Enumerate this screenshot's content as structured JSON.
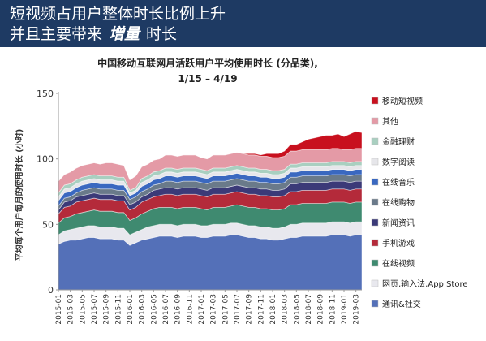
{
  "header": {
    "line1": "短视频占用户整体时长比例上升",
    "line2_a": "并且主要带来",
    "line2_b": "增量",
    "line2_c": "时长"
  },
  "colors": {
    "header_bg": "#1e3a63",
    "header_text": "#ffffff"
  },
  "chart_data": {
    "type": "area",
    "stacked": true,
    "title": "中国移动互联网月活跃用户平均使用时长 (分品类),",
    "subtitle": "1/15 – 4/19",
    "ylabel": "平均每个用户每月的使用时长 (小时)",
    "xlabel": "",
    "ylim": [
      0,
      150
    ],
    "yticks": [
      0,
      50,
      100,
      150
    ],
    "grid": false,
    "legend_position": "right",
    "x": [
      "2015-01",
      "2015-02",
      "2015-03",
      "2015-04",
      "2015-05",
      "2015-06",
      "2015-07",
      "2015-08",
      "2015-09",
      "2015-10",
      "2015-11",
      "2015-12",
      "2016-01",
      "2016-02",
      "2016-03",
      "2016-04",
      "2016-05",
      "2016-06",
      "2016-07",
      "2016-08",
      "2016-09",
      "2016-10",
      "2016-11",
      "2016-12",
      "2017-01",
      "2017-02",
      "2017-03",
      "2017-04",
      "2017-05",
      "2017-06",
      "2017-07",
      "2017-08",
      "2017-09",
      "2017-10",
      "2017-11",
      "2017-12",
      "2018-01",
      "2018-02",
      "2018-03",
      "2018-04",
      "2018-05",
      "2018-06",
      "2018-07",
      "2018-08",
      "2018-09",
      "2018-10",
      "2018-11",
      "2018-12",
      "2019-01",
      "2019-02",
      "2019-03",
      "2019-04"
    ],
    "x_tick_labels": [
      "2015-01",
      "2015-03",
      "2015-05",
      "2015-07",
      "2015-09",
      "2015-11",
      "2016-01",
      "2016-03",
      "2016-05",
      "2016-07",
      "2016-09",
      "2016-11",
      "2017-01",
      "2017-03",
      "2017-05",
      "2017-07",
      "2017-09",
      "2017-11",
      "2018-01",
      "2018-03",
      "2018-05",
      "2018-07",
      "2018-09",
      "2018-11",
      "2019-01",
      "2019-03"
    ],
    "series": [
      {
        "name": "通讯&社交",
        "color": "#5470b8",
        "values": [
          35,
          37,
          38,
          38,
          39,
          40,
          40,
          39,
          39,
          39,
          38,
          38,
          34,
          36,
          38,
          39,
          40,
          41,
          41,
          41,
          40,
          41,
          41,
          41,
          40,
          40,
          41,
          41,
          41,
          42,
          42,
          41,
          40,
          40,
          39,
          39,
          38,
          38,
          39,
          40,
          40,
          41,
          41,
          41,
          41,
          41,
          42,
          42,
          42,
          41,
          42,
          42
        ]
      },
      {
        "name": "网页,输入法,App Store",
        "color": "#e8e8ee",
        "values": [
          7,
          8,
          8,
          9,
          9,
          9,
          9,
          9,
          9,
          9,
          9,
          9,
          8,
          8,
          8,
          9,
          9,
          9,
          9,
          9,
          9,
          9,
          9,
          9,
          9,
          9,
          9,
          9,
          9,
          9,
          9,
          9,
          9,
          9,
          9,
          9,
          9,
          9,
          9,
          10,
          10,
          10,
          10,
          10,
          10,
          10,
          10,
          10,
          10,
          10,
          10,
          10
        ]
      },
      {
        "name": "在线视频",
        "color": "#3f8a70",
        "values": [
          9,
          10,
          10,
          11,
          11,
          11,
          12,
          12,
          12,
          12,
          12,
          12,
          11,
          11,
          12,
          12,
          13,
          13,
          13,
          13,
          13,
          13,
          13,
          13,
          13,
          12,
          13,
          13,
          13,
          13,
          14,
          14,
          14,
          14,
          14,
          14,
          14,
          14,
          14,
          15,
          15,
          15,
          15,
          15,
          15,
          15,
          15,
          15,
          15,
          15,
          15,
          15
        ]
      },
      {
        "name": "手机游戏",
        "color": "#b42a3a",
        "values": [
          7,
          8,
          8,
          9,
          9,
          9,
          9,
          9,
          9,
          9,
          9,
          9,
          8,
          8,
          9,
          9,
          9,
          9,
          10,
          10,
          10,
          10,
          10,
          10,
          10,
          10,
          10,
          10,
          10,
          10,
          10,
          10,
          10,
          10,
          10,
          10,
          10,
          10,
          10,
          10,
          10,
          10,
          10,
          10,
          10,
          10,
          10,
          10,
          10,
          10,
          10,
          10
        ]
      },
      {
        "name": "新闻资讯",
        "color": "#3b3a78",
        "values": [
          3,
          4,
          4,
          4,
          4,
          4,
          4,
          4,
          4,
          4,
          4,
          4,
          4,
          4,
          4,
          4,
          5,
          5,
          5,
          5,
          5,
          5,
          5,
          5,
          5,
          5,
          5,
          5,
          5,
          5,
          5,
          5,
          5,
          5,
          5,
          5,
          5,
          5,
          5,
          6,
          6,
          6,
          6,
          6,
          6,
          6,
          6,
          6,
          6,
          6,
          6,
          6
        ]
      },
      {
        "name": "在线购物",
        "color": "#6a7a8a",
        "values": [
          3,
          3,
          3,
          3,
          4,
          4,
          4,
          4,
          4,
          4,
          4,
          4,
          4,
          4,
          4,
          4,
          4,
          4,
          5,
          5,
          5,
          5,
          5,
          5,
          5,
          5,
          5,
          5,
          5,
          5,
          5,
          5,
          5,
          5,
          5,
          5,
          5,
          5,
          5,
          5,
          5,
          5,
          5,
          5,
          5,
          5,
          5,
          5,
          5,
          5,
          5,
          5
        ]
      },
      {
        "name": "在线音乐",
        "color": "#3a68c0",
        "values": [
          4,
          4,
          4,
          4,
          4,
          4,
          4,
          4,
          4,
          4,
          4,
          4,
          3,
          3,
          4,
          4,
          4,
          4,
          4,
          4,
          4,
          4,
          4,
          4,
          4,
          4,
          4,
          4,
          4,
          4,
          4,
          4,
          4,
          4,
          4,
          4,
          4,
          4,
          4,
          4,
          4,
          4,
          4,
          4,
          4,
          4,
          4,
          4,
          4,
          4,
          4,
          4
        ]
      },
      {
        "name": "数字阅读",
        "color": "#e6e6ea",
        "values": [
          3,
          3,
          3,
          3,
          3,
          3,
          3,
          3,
          3,
          3,
          3,
          3,
          2,
          2,
          3,
          3,
          3,
          3,
          3,
          3,
          3,
          3,
          3,
          3,
          3,
          3,
          3,
          3,
          3,
          3,
          3,
          3,
          3,
          3,
          3,
          3,
          3,
          3,
          3,
          3,
          3,
          3,
          3,
          3,
          3,
          3,
          3,
          3,
          3,
          3,
          3,
          3
        ]
      },
      {
        "name": "金融理财",
        "color": "#a9cfc0",
        "values": [
          3,
          3,
          3,
          3,
          3,
          3,
          3,
          3,
          3,
          3,
          3,
          3,
          2,
          2,
          3,
          3,
          3,
          3,
          3,
          3,
          3,
          3,
          3,
          3,
          3,
          3,
          3,
          3,
          3,
          3,
          3,
          3,
          3,
          3,
          3,
          3,
          3,
          3,
          3,
          3,
          3,
          3,
          3,
          3,
          3,
          3,
          3,
          3,
          3,
          3,
          3,
          3
        ]
      },
      {
        "name": "其他",
        "color": "#e49aa6",
        "values": [
          9,
          8,
          9,
          9,
          9,
          9,
          9,
          9,
          10,
          10,
          10,
          9,
          8,
          9,
          9,
          9,
          9,
          9,
          10,
          10,
          10,
          10,
          10,
          10,
          9,
          9,
          10,
          10,
          10,
          10,
          10,
          10,
          10,
          10,
          10,
          10,
          10,
          10,
          10,
          10,
          10,
          10,
          10,
          10,
          10,
          10,
          10,
          10,
          9,
          10,
          10,
          10
        ]
      },
      {
        "name": "移动短视频",
        "color": "#c8101e",
        "values": [
          0,
          0,
          0,
          0,
          0,
          0,
          0,
          0,
          0,
          0,
          0,
          0,
          0,
          0,
          0,
          0,
          0,
          0,
          0,
          0,
          0,
          0,
          0,
          0,
          0,
          0,
          0,
          0,
          0,
          0,
          0,
          0,
          1,
          1,
          1,
          2,
          3,
          3,
          4,
          5,
          5,
          6,
          8,
          9,
          10,
          11,
          10,
          11,
          10,
          12,
          13,
          12
        ]
      }
    ]
  }
}
